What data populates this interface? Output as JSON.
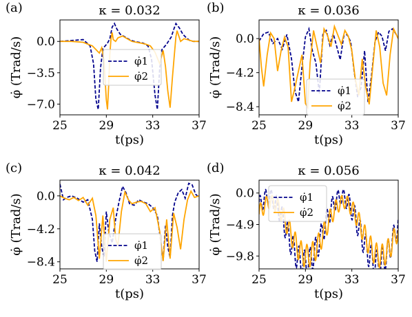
{
  "chart_data": [
    {
      "panel": "(a)",
      "title": "κ = 0.032",
      "type": "line",
      "xlabel": "t(ps)",
      "ylabel": "φ̇ (Trad/s)",
      "xlim": [
        25,
        37
      ],
      "ylim": [
        -8.2,
        2.4
      ],
      "xticks": [
        25,
        29,
        33,
        37
      ],
      "yticks": [
        0.0,
        -3.5,
        -7.0
      ],
      "yticklabels": [
        "0.0",
        "−3.5",
        "−7.0"
      ],
      "legend_position": "center",
      "series": [
        {
          "name": "φ̇1",
          "color": "#00008b",
          "dash": "dashed",
          "x": [
            25,
            26,
            27,
            27.6,
            27.9,
            28.1,
            28.3,
            28.5,
            28.7,
            28.9,
            29.1,
            29.3,
            29.5,
            29.7,
            29.9,
            30.2,
            30.6,
            31.0,
            31.4,
            31.8,
            32.2,
            32.6,
            32.9,
            33.2,
            33.4,
            33.6,
            33.8,
            34.0,
            34.2,
            34.4,
            34.6,
            34.8,
            35.0,
            35.3,
            35.6,
            35.9,
            36.2,
            36.5,
            36.8,
            37
          ],
          "y": [
            0,
            0.1,
            0.2,
            -0.5,
            -2.5,
            -6.5,
            -7.6,
            -3.0,
            -0.8,
            -0.5,
            -0.2,
            0.3,
            1.6,
            2.0,
            1.4,
            0.8,
            0.5,
            0.2,
            0.0,
            -0.1,
            -0.2,
            -0.5,
            -2.0,
            -6.0,
            -7.6,
            -3.0,
            -0.9,
            -0.6,
            -0.3,
            0.1,
            0.5,
            1.3,
            2.0,
            1.5,
            0.8,
            0.4,
            0.1,
            0.0,
            0.0,
            0.0
          ]
        },
        {
          "name": "φ̇2",
          "color": "#ffa500",
          "dash": "solid",
          "x": [
            25,
            26,
            27,
            27.8,
            28.1,
            28.4,
            28.6,
            28.8,
            29.0,
            29.1,
            29.2,
            29.3,
            29.4,
            29.5,
            29.6,
            29.8,
            30.0,
            30.4,
            30.8,
            31.2,
            31.6,
            32.0,
            32.4,
            32.8,
            33.2,
            33.6,
            33.9,
            34.1,
            34.3,
            34.5,
            34.7,
            34.9,
            35.0,
            35.1,
            35.2,
            35.4,
            35.7,
            36.0,
            36.5,
            37
          ],
          "y": [
            0,
            0.0,
            -0.1,
            -0.5,
            -0.9,
            -1.3,
            -0.7,
            -2.2,
            -6.5,
            -7.6,
            -5.0,
            -1.5,
            0.3,
            1.0,
            0.2,
            0.0,
            0.4,
            0.6,
            0.3,
            0.0,
            -0.1,
            -0.2,
            -0.3,
            -0.5,
            -1.2,
            -2.5,
            -1.0,
            -2.8,
            -5.5,
            -7.4,
            -4.0,
            -1.0,
            0.5,
            1.2,
            0.8,
            0.0,
            0.3,
            0.2,
            0.0,
            0.0
          ]
        }
      ]
    },
    {
      "panel": "(b)",
      "title": "κ = 0.036",
      "type": "line",
      "xlabel": "t(ps)",
      "ylabel": "φ̇ (Trad/s)",
      "xlim": [
        25,
        37
      ],
      "ylim": [
        -9.4,
        2.3
      ],
      "xticks": [
        25,
        29,
        33,
        37
      ],
      "yticks": [
        0.0,
        -4.2,
        -8.4
      ],
      "yticklabels": [
        "0.0",
        "−4.2",
        "−8.4"
      ],
      "legend_position": "center-right",
      "series": [
        {
          "name": "φ̇1",
          "color": "#00008b",
          "dash": "dashed",
          "x": [
            25,
            25.4,
            25.8,
            26.2,
            26.6,
            27.0,
            27.4,
            27.8,
            28.1,
            28.4,
            28.7,
            29.0,
            29.3,
            29.6,
            29.9,
            30.2,
            30.5,
            30.8,
            31.1,
            31.4,
            31.7,
            32.0,
            32.3,
            32.6,
            32.9,
            33.2,
            33.5,
            33.8,
            34.1,
            34.4,
            34.7,
            35.0,
            35.3,
            35.6,
            35.9,
            36.2,
            36.5,
            36.8,
            37
          ],
          "y": [
            -0.3,
            0.6,
            0.8,
            -0.6,
            0.0,
            -1.3,
            0.5,
            -2.5,
            -6.5,
            -7.8,
            -3.5,
            0.2,
            1.2,
            -1.5,
            -3.0,
            -6.8,
            0.5,
            1.0,
            -0.8,
            0.6,
            -1.0,
            -2.6,
            0.3,
            0.5,
            -0.4,
            -4.0,
            -7.2,
            -6.0,
            -1.5,
            -7.9,
            -4.5,
            -0.4,
            0.8,
            0.3,
            -1.5,
            0.9,
            1.2,
            0.6,
            0.0
          ]
        },
        {
          "name": "φ̇2",
          "color": "#ffa500",
          "dash": "solid",
          "x": [
            25,
            25.2,
            25.4,
            25.7,
            26.0,
            26.3,
            26.6,
            26.9,
            27.2,
            27.5,
            27.8,
            28.1,
            28.4,
            28.7,
            29.0,
            29.2,
            29.4,
            29.7,
            30.0,
            30.3,
            30.6,
            30.9,
            31.2,
            31.5,
            31.8,
            32.1,
            32.4,
            32.7,
            33.0,
            33.3,
            33.6,
            33.9,
            34.2,
            34.5,
            34.8,
            35.1,
            35.4,
            35.7,
            36.0,
            36.3,
            36.6,
            37
          ],
          "y": [
            0.0,
            -3.5,
            -5.9,
            -2.0,
            0.7,
            0.0,
            -4.0,
            -1.5,
            0.2,
            -1.0,
            -7.8,
            -6.0,
            -4.0,
            -2.0,
            -8.0,
            -8.5,
            -3.0,
            1.0,
            -1.0,
            -3.0,
            1.2,
            0.4,
            -1.0,
            1.5,
            0.4,
            -0.7,
            1.0,
            0.3,
            -1.5,
            -5.0,
            -7.0,
            -2.5,
            -6.0,
            -8.1,
            -3.5,
            1.0,
            -1.0,
            -5.5,
            -7.0,
            -2.0,
            1.2,
            0.0
          ]
        }
      ]
    },
    {
      "panel": "(c)",
      "title": "κ = 0.042",
      "type": "line",
      "xlabel": "t(ps)",
      "ylabel": "φ̇ (Trad/s)",
      "xlim": [
        25,
        37
      ],
      "ylim": [
        -9.3,
        2.0
      ],
      "xticks": [
        25,
        29,
        33,
        37
      ],
      "yticks": [
        0.0,
        -4.2,
        -8.4
      ],
      "yticklabels": [
        "0.0",
        "−4.2",
        "−8.4"
      ],
      "legend_position": "lower-center",
      "series": [
        {
          "name": "φ̇1",
          "color": "#00008b",
          "dash": "dashed",
          "x": [
            25,
            25.3,
            25.6,
            26.0,
            26.5,
            27.0,
            27.4,
            27.8,
            28.0,
            28.2,
            28.4,
            28.6,
            28.8,
            29.0,
            29.2,
            29.5,
            29.8,
            30.1,
            30.4,
            30.7,
            31.0,
            31.4,
            31.8,
            32.2,
            32.6,
            33.0,
            33.4,
            33.7,
            33.9,
            34.1,
            34.3,
            34.5,
            34.7,
            34.9,
            35.2,
            35.5,
            35.8,
            36.1,
            36.4,
            36.7,
            37
          ],
          "y": [
            1.5,
            -0.5,
            -0.2,
            0.0,
            -0.3,
            -0.8,
            -0.5,
            -3.0,
            -7.0,
            -8.4,
            -3.5,
            -6.5,
            -7.8,
            -2.0,
            -4.5,
            -6.0,
            -3.0,
            -0.7,
            1.2,
            0.4,
            -1.0,
            -1.2,
            -0.5,
            -0.8,
            -1.0,
            -1.5,
            -2.5,
            -6.0,
            -8.3,
            -3.8,
            -6.5,
            -7.9,
            -2.5,
            -0.8,
            0.4,
            0.8,
            -0.3,
            1.6,
            1.4,
            0.2,
            -0.2
          ]
        },
        {
          "name": "φ̇2",
          "color": "#ffa500",
          "dash": "solid",
          "x": [
            25,
            25.4,
            25.8,
            26.2,
            26.6,
            27.0,
            27.4,
            27.8,
            28.1,
            28.4,
            28.7,
            29.0,
            29.3,
            29.6,
            29.8,
            30.0,
            30.3,
            30.6,
            30.9,
            31.2,
            31.6,
            32.0,
            32.4,
            32.8,
            33.2,
            33.6,
            33.9,
            34.2,
            34.5,
            34.8,
            35.1,
            35.4,
            35.7,
            36.0,
            36.3,
            36.6,
            37
          ],
          "y": [
            0.0,
            -0.3,
            -0.5,
            -0.2,
            -0.6,
            -0.2,
            -1.2,
            -0.3,
            -2.5,
            -8.0,
            -2.5,
            -8.4,
            -3.0,
            -1.5,
            -5.5,
            -6.3,
            -2.0,
            0.5,
            -0.5,
            -1.0,
            -0.8,
            -0.7,
            -1.0,
            -2.0,
            -1.5,
            -4.5,
            -8.3,
            -3.0,
            -8.0,
            -2.2,
            -4.0,
            -6.8,
            -3.0,
            -0.5,
            0.6,
            -0.2,
            0.0
          ]
        }
      ]
    },
    {
      "panel": "(d)",
      "title": "κ = 0.056",
      "type": "line",
      "xlabel": "t(ps)",
      "ylabel": "φ̇ (Trad/s)",
      "xlim": [
        25,
        37
      ],
      "ylim": [
        -11.8,
        2.0
      ],
      "xticks": [
        25,
        29,
        33,
        37
      ],
      "yticks": [
        0.0,
        -4.9,
        -9.8
      ],
      "yticklabels": [
        "0.0",
        "−4.9",
        "−9.8"
      ],
      "legend_position": "upper-left",
      "series": [
        {
          "name": "φ̇1",
          "color": "#00008b",
          "dash": "dashed",
          "osc": {
            "base_amp": 5.2,
            "base_mid": -5.8,
            "period": 6.3,
            "phase": 25.8,
            "wiggle_amp": 2.1,
            "wiggle_period": 0.48
          },
          "x": [],
          "y": []
        },
        {
          "name": "φ̇2",
          "color": "#ffa500",
          "dash": "solid",
          "osc": {
            "base_amp": 4.2,
            "base_mid": -5.6,
            "period": 6.3,
            "phase": 26.0,
            "wiggle_amp": 1.8,
            "wiggle_period": 0.5
          },
          "x": [],
          "y": []
        }
      ]
    }
  ]
}
